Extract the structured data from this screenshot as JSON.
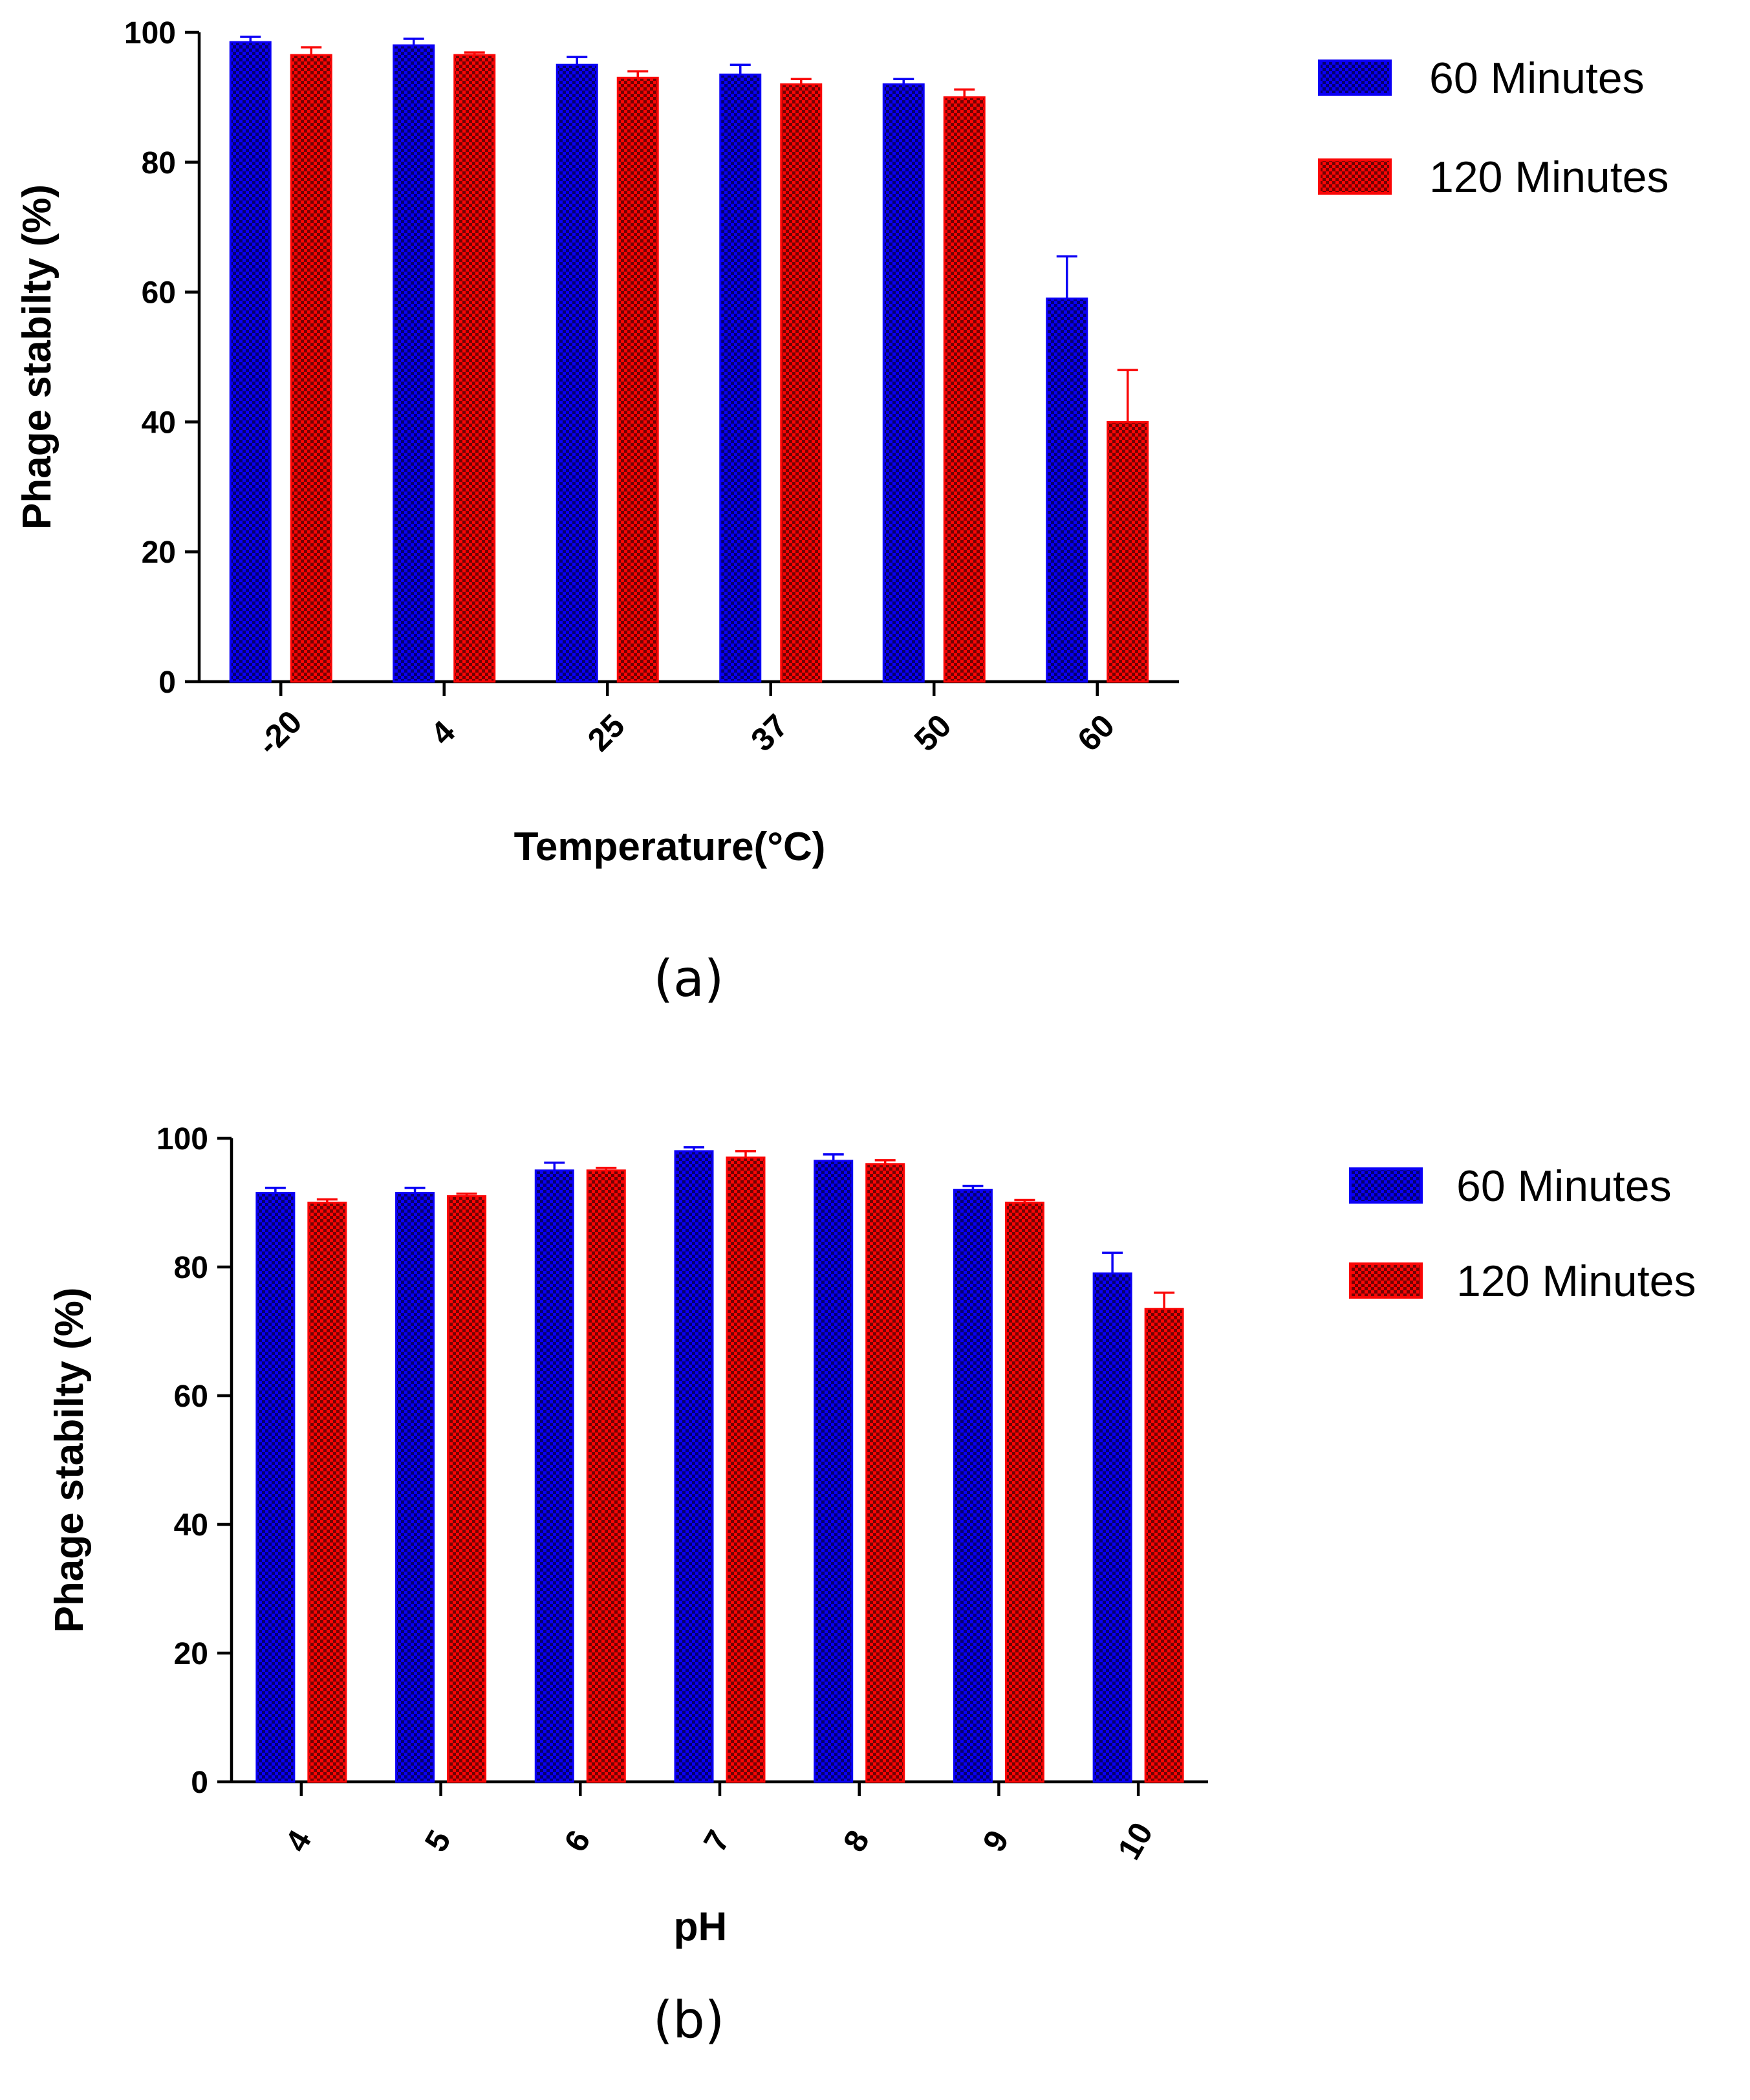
{
  "colors": {
    "series_60": "#0b00f5",
    "series_120": "#fa0606",
    "axis": "#000000"
  },
  "chart_data": [
    {
      "type": "bar",
      "panel_label": "(a)",
      "title": "",
      "xlabel": "Temperature(°C)",
      "ylabel": "Phage stabilty (%)",
      "ylim": [
        0,
        100
      ],
      "yticks": [
        0,
        20,
        40,
        60,
        80,
        100
      ],
      "categories": [
        "-20",
        "4",
        "25",
        "37",
        "50",
        "60"
      ],
      "legend_position": "top-right",
      "series": [
        {
          "name": "60 Minutes",
          "values": [
            98.5,
            98,
            95,
            93.5,
            92,
            59
          ],
          "errors": [
            0.8,
            1.0,
            1.2,
            1.5,
            0.8,
            6.5
          ]
        },
        {
          "name": "120 Minutes",
          "values": [
            96.5,
            96.5,
            93,
            92,
            90,
            40
          ],
          "errors": [
            1.2,
            0.4,
            1.0,
            0.8,
            1.2,
            8
          ]
        }
      ]
    },
    {
      "type": "bar",
      "panel_label": "(b)",
      "title": "",
      "xlabel": "pH",
      "ylabel": "Phage stabilty (%)",
      "ylim": [
        0,
        100
      ],
      "yticks": [
        0,
        20,
        40,
        60,
        80,
        100
      ],
      "categories": [
        "4",
        "5",
        "6",
        "7",
        "8",
        "9",
        "10"
      ],
      "legend_position": "top-right",
      "series": [
        {
          "name": "60 Minutes",
          "values": [
            91.5,
            91.5,
            95,
            98,
            96.5,
            92,
            79
          ],
          "errors": [
            0.8,
            0.8,
            1.2,
            0.6,
            1.0,
            0.6,
            3.2
          ]
        },
        {
          "name": "120 Minutes",
          "values": [
            90,
            91,
            95,
            97,
            96,
            90,
            73.5
          ],
          "errors": [
            0.5,
            0.4,
            0.4,
            1.0,
            0.6,
            0.4,
            2.5
          ]
        }
      ]
    }
  ]
}
